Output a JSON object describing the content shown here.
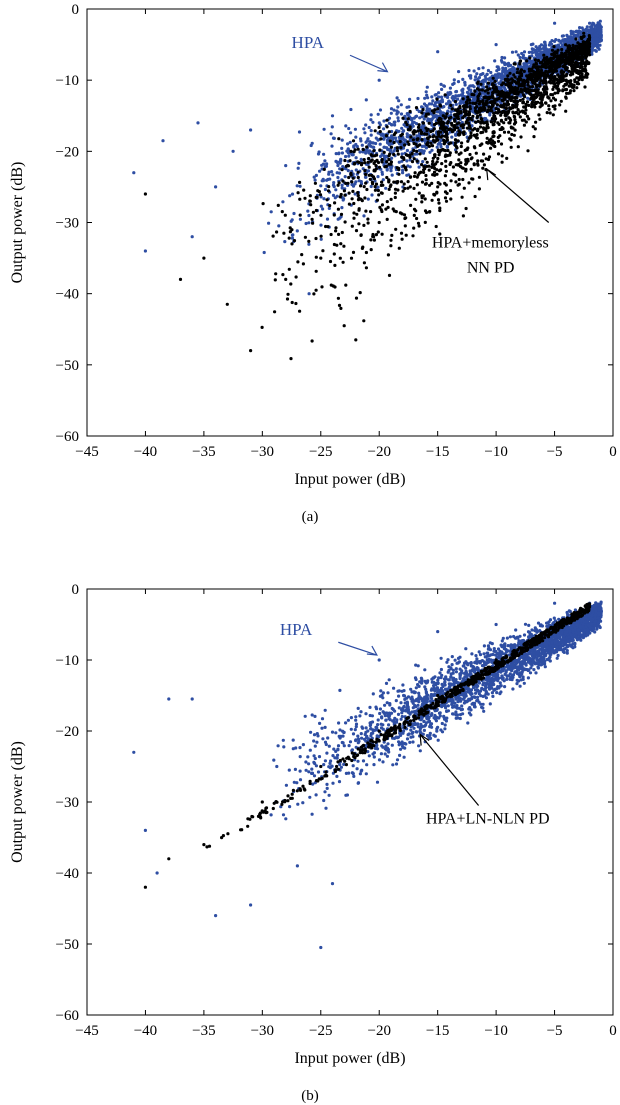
{
  "colors": {
    "hpa": "#2e4ea3",
    "predistorted": "#000000",
    "axis": "#000000"
  },
  "chart_data": [
    {
      "type": "scatter",
      "panel_label": "(a)",
      "xlabel": "Input power (dB)",
      "ylabel": "Output power (dB)",
      "xlim": [
        -45,
        0
      ],
      "ylim": [
        -60,
        0
      ],
      "xticks": [
        "−45",
        "−40",
        "−35",
        "−30",
        "−25",
        "−20",
        "−15",
        "−10",
        "−5",
        "0"
      ],
      "yticks": [
        "0",
        "−10",
        "−20",
        "−30",
        "−40",
        "−50",
        "−60"
      ],
      "grid": false,
      "annotations": [
        {
          "text": "HPA",
          "x": -19,
          "y": -9,
          "color": "#2e4ea3"
        },
        {
          "text": "HPA+memoryless",
          "x": -11,
          "y": -22
        },
        {
          "text": "NN PD",
          "x": -11,
          "y": -22
        }
      ],
      "series": [
        {
          "description": "HPA output",
          "color": "#2e4ea3",
          "band": {
            "x_range": [
              -30,
              -1
            ],
            "slope": 0.87,
            "offset": -2.6,
            "spread_low": 2.5,
            "spread_high": 3.5
          },
          "sample_points": [
            [
              -41,
              -23
            ],
            [
              -40,
              -34
            ],
            [
              -38.5,
              -18.5
            ],
            [
              -36,
              -32
            ],
            [
              -35.5,
              -16
            ],
            [
              -34,
              -25
            ],
            [
              -32.5,
              -20
            ],
            [
              -31,
              -17
            ],
            [
              -28,
              -22
            ],
            [
              -26,
              -40
            ],
            [
              -24,
              -15
            ],
            [
              -22,
              -18
            ],
            [
              -20,
              -10
            ],
            [
              -15,
              -6
            ],
            [
              -10,
              -5
            ],
            [
              -5,
              -2
            ],
            [
              -2,
              -2
            ]
          ]
        },
        {
          "description": "HPA + memoryless NN PD",
          "color": "#000000",
          "band": {
            "x_range": [
              -31,
              -2
            ],
            "slope": 1.0,
            "offset": -3.5,
            "spread_low": 6,
            "spread_high": 4
          },
          "sample_points": [
            [
              -40,
              -26
            ],
            [
              -37,
              -38
            ],
            [
              -35,
              -35
            ],
            [
              -33,
              -41.5
            ],
            [
              -31,
              -48
            ],
            [
              -28,
              -38
            ],
            [
              -25,
              -35
            ],
            [
              -23,
              -44.5
            ],
            [
              -22,
              -46.5
            ],
            [
              -20,
              -30
            ],
            [
              -17,
              -29
            ],
            [
              -15,
              -25
            ],
            [
              -12,
              -17
            ],
            [
              -10,
              -14
            ],
            [
              -5,
              -8
            ],
            [
              -2,
              -4
            ]
          ]
        }
      ]
    },
    {
      "type": "scatter",
      "panel_label": "(b)",
      "xlabel": "Input power (dB)",
      "ylabel": "Output power (dB)",
      "xlim": [
        -45,
        0
      ],
      "ylim": [
        -60,
        0
      ],
      "xticks": [
        "−45",
        "−40",
        "−35",
        "−30",
        "−25",
        "−20",
        "−15",
        "−10",
        "−5",
        "0"
      ],
      "yticks": [
        "0",
        "−10",
        "−20",
        "−30",
        "−40",
        "−50",
        "−60"
      ],
      "grid": false,
      "annotations": [
        {
          "text": "HPA",
          "x": -20,
          "y": -10,
          "color": "#2e4ea3"
        },
        {
          "text": "HPA+LN-NLN PD",
          "x": -16,
          "y": -20
        }
      ],
      "series": [
        {
          "description": "HPA output",
          "color": "#2e4ea3",
          "band": {
            "x_range": [
              -30,
              -1
            ],
            "slope": 0.87,
            "offset": -2.6,
            "spread_low": 2.5,
            "spread_high": 3.5
          },
          "sample_points": [
            [
              -41,
              -23
            ],
            [
              -40,
              -34
            ],
            [
              -39,
              -40
            ],
            [
              -38,
              -15.5
            ],
            [
              -36,
              -15.5
            ],
            [
              -34,
              -46
            ],
            [
              -31,
              -44.5
            ],
            [
              -27,
              -39
            ],
            [
              -25,
              -50.5
            ],
            [
              -24,
              -41.5
            ],
            [
              -22,
              -18
            ],
            [
              -20,
              -10
            ],
            [
              -15,
              -6
            ],
            [
              -10,
              -5
            ],
            [
              -5,
              -2
            ],
            [
              -2,
              -2
            ]
          ]
        },
        {
          "description": "HPA + LN-NLN PD",
          "color": "#000000",
          "line": {
            "from": [
              -40,
              -42
            ],
            "to": [
              -2,
              -2.5
            ]
          },
          "sample_points": [
            [
              -40,
              -42
            ],
            [
              -38,
              -38
            ],
            [
              -35,
              -36
            ],
            [
              -30,
              -30
            ],
            [
              -25,
              -25
            ],
            [
              -20,
              -20
            ],
            [
              -15,
              -15
            ],
            [
              -10,
              -10
            ],
            [
              -5,
              -5.5
            ],
            [
              -2,
              -2.5
            ]
          ]
        }
      ]
    }
  ]
}
